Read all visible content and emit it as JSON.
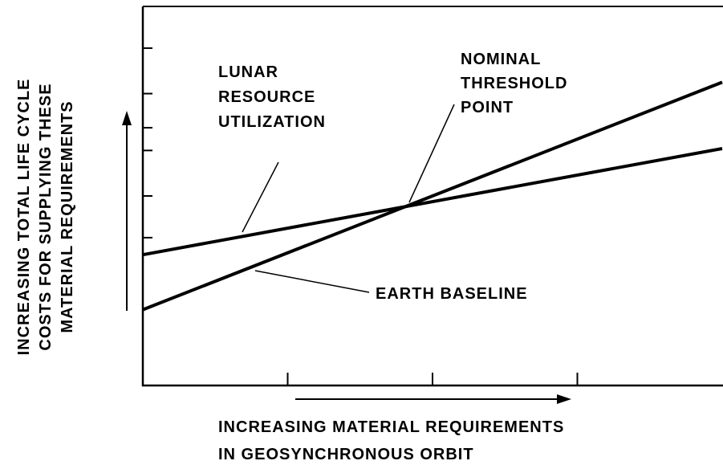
{
  "chart_data": {
    "type": "line",
    "y_label": [
      "INCREASING TOTAL LIFE CYCLE",
      "COSTS FOR SUPPLYING THESE",
      "MATERIAL REQUIREMENTS"
    ],
    "x_label": [
      "INCREASING MATERIAL REQUIREMENTS",
      "IN GEOSYNCHRONOUS ORBIT"
    ],
    "annotation": [
      "NOMINAL",
      "THRESHOLD",
      "POINT"
    ],
    "x": [
      0,
      4
    ],
    "series": [
      {
        "name": "LUNAR RESOURCE UTILIZATION",
        "color": "#000000",
        "values": [
          3.45,
          6.25
        ]
      },
      {
        "name": "EARTH BASELINE",
        "color": "#000000",
        "values": [
          2.0,
          8.0
        ]
      }
    ],
    "xlim": [
      0,
      4
    ],
    "ylim": [
      0,
      10
    ],
    "xticks": [
      1,
      2,
      3
    ],
    "yticks": [
      3.9,
      5,
      6.2,
      6.8,
      7.7,
      8.9
    ]
  }
}
